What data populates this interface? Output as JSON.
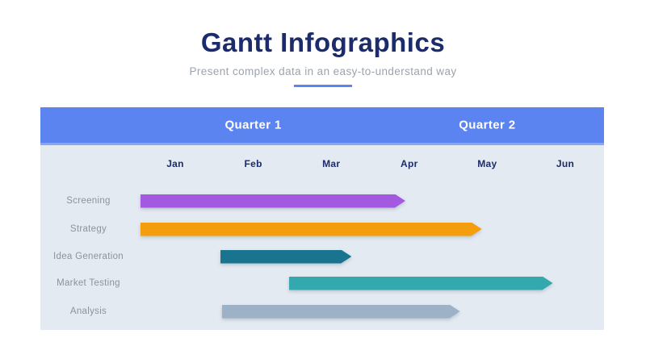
{
  "header": {
    "title": "Gantt Infographics",
    "subtitle": "Present complex data in an easy-to-understand way"
  },
  "colors": {
    "accent_blue": "#5C84F0",
    "chart_bg": "#E4EAF1",
    "title_navy": "#1B2B6B",
    "subtitle_gray": "#9CA3AB",
    "row_label_gray": "#8C939B"
  },
  "chart_data": {
    "type": "bar",
    "subtype": "gantt",
    "title": "Gantt Infographics",
    "legend_position": "none",
    "grid": false,
    "quarters": [
      {
        "label": "Quarter 1",
        "months_spanned": [
          "Jan",
          "Feb",
          "Mar"
        ]
      },
      {
        "label": "Quarter 2",
        "months_spanned": [
          "Apr",
          "May",
          "Jun"
        ]
      }
    ],
    "months": [
      "Jan",
      "Feb",
      "Mar",
      "Apr",
      "May",
      "Jun"
    ],
    "x_axis_units": "months (0 = start of Jan)",
    "xlim": [
      0,
      6
    ],
    "tasks": [
      {
        "label": "Screening",
        "start_month": 0.05,
        "end_month": 3.45,
        "color": "#A35AE0"
      },
      {
        "label": "Strategy",
        "start_month": 0.05,
        "end_month": 4.43,
        "color": "#F49D0D"
      },
      {
        "label": "Idea Generation",
        "start_month": 1.08,
        "end_month": 2.76,
        "color": "#19758F"
      },
      {
        "label": "Market Testing",
        "start_month": 1.96,
        "end_month": 5.34,
        "color": "#34A9AD"
      },
      {
        "label": "Analysis",
        "start_month": 1.1,
        "end_month": 4.15,
        "color": "#9DB2C6"
      }
    ]
  }
}
